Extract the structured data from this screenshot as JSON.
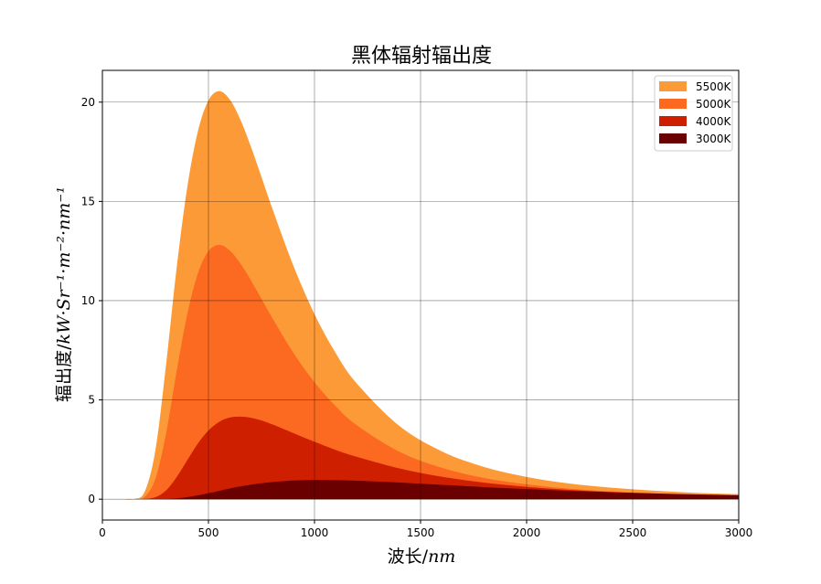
{
  "chart_data": {
    "type": "area",
    "title": "黑体辐射辐出度",
    "xlabel_prefix": "波长/",
    "xlabel_unit": "nm",
    "ylabel_prefix": "辐出度/",
    "ylabel_unit": "kW·Sr⁻¹·m⁻²·nm⁻¹",
    "xlim": [
      0,
      3000
    ],
    "ylim": [
      -1.05,
      21.6
    ],
    "x_ticks": [
      0,
      500,
      1000,
      1500,
      2000,
      2500,
      3000
    ],
    "y_ticks": [
      0,
      5,
      10,
      15,
      20
    ],
    "grid": true,
    "legend_position": "top-right",
    "x_range": [
      100,
      3000
    ],
    "x": [
      100,
      150,
      200,
      250,
      300,
      350,
      400,
      450,
      500,
      550,
      600,
      650,
      700,
      750,
      800,
      900,
      1000,
      1100,
      1200,
      1400,
      1600,
      1800,
      2000,
      2200,
      2400,
      2600,
      2800,
      3000
    ],
    "series": [
      {
        "name": "5500K",
        "color": "#fd9a38",
        "values": [
          0.0,
          0.01,
          0.39,
          2.48,
          6.76,
          11.65,
          15.7,
          18.52,
          20.08,
          20.55,
          20.14,
          19.13,
          17.76,
          16.23,
          14.68,
          11.77,
          9.32,
          7.36,
          5.82,
          3.69,
          2.41,
          1.62,
          1.12,
          0.79,
          0.58,
          0.43,
          0.32,
          0.25
        ]
      },
      {
        "name": "5000K",
        "color": "#fc6921",
        "values": [
          0.0,
          0.0,
          0.13,
          1.03,
          3.3,
          6.44,
          9.31,
          11.37,
          12.49,
          12.81,
          12.53,
          11.88,
          11.03,
          10.09,
          9.15,
          7.38,
          5.89,
          4.68,
          3.72,
          2.39,
          1.58,
          1.07,
          0.75,
          0.53,
          0.39,
          0.29,
          0.22,
          0.17
        ]
      },
      {
        "name": "4000K",
        "color": "#cf1f01",
        "values": [
          0.0,
          0.0,
          0.01,
          0.1,
          0.44,
          1.11,
          1.96,
          2.8,
          3.46,
          3.89,
          4.11,
          4.16,
          4.1,
          3.96,
          3.77,
          3.33,
          2.89,
          2.48,
          2.13,
          1.55,
          1.13,
          0.83,
          0.62,
          0.47,
          0.36,
          0.28,
          0.22,
          0.17
        ]
      },
      {
        "name": "3000K",
        "color": "#6a0000",
        "values": [
          0.0,
          0.0,
          0.0,
          0.0,
          0.01,
          0.04,
          0.1,
          0.19,
          0.3,
          0.42,
          0.54,
          0.64,
          0.73,
          0.8,
          0.86,
          0.94,
          0.97,
          0.96,
          0.93,
          0.84,
          0.72,
          0.61,
          0.51,
          0.42,
          0.35,
          0.29,
          0.24,
          0.2
        ]
      }
    ]
  }
}
